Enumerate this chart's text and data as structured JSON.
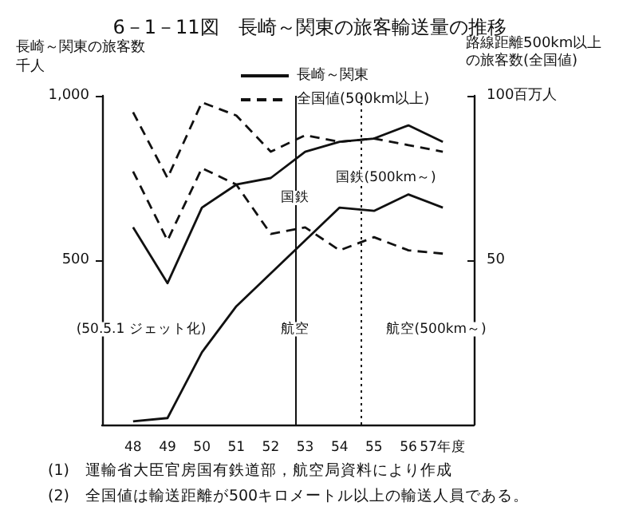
{
  "chart_data": {
    "type": "line",
    "title": "6－1－11図　長崎～関東の旅客輸送量の推移",
    "ylabel": "長崎～関東の旅客数千人",
    "y2label": "路線距離500km以上の旅客数(全国値)",
    "x": [
      48,
      49,
      50,
      51,
      52,
      53,
      54,
      55,
      56,
      57
    ],
    "xlim": [
      47.1,
      57.9
    ],
    "xticks": [
      48,
      49,
      50,
      51,
      52,
      53,
      54,
      55,
      56,
      {
        "value": 57,
        "label": "57年度"
      }
    ],
    "ylim": [
      0,
      1000
    ],
    "yticks": [
      500,
      {
        "value": 1000,
        "label": "1,000"
      }
    ],
    "y2lim": [
      0,
      100
    ],
    "y2ticks": [
      50,
      {
        "value": 100,
        "label": "100百万人"
      }
    ],
    "series": [
      {
        "name": "長崎～関東",
        "color": "#111111",
        "line_style": "solid",
        "values": [
          600,
          430,
          660,
          730,
          750,
          830,
          860,
          870,
          910,
          860
        ]
      },
      {
        "name": "全国値(500km以上)",
        "color": "#111111",
        "line_style": "dashed",
        "axis": "y2",
        "values": [
          95,
          75,
          98,
          94,
          83,
          88,
          86,
          87,
          85,
          83
        ]
      },
      {
        "color": "#111111",
        "line_style": "solid",
        "values": [
          10,
          20,
          220,
          360,
          460,
          560,
          660,
          650,
          700,
          660
        ]
      },
      {
        "color": "#111111",
        "line_style": "dashed",
        "axis": "y2",
        "values": [
          77,
          56,
          78,
          73,
          58,
          60,
          53,
          57,
          53,
          52
        ]
      }
    ],
    "ref_lines": [
      {
        "axis": "x",
        "value": 52.7,
        "color": "#111111",
        "line_style": "solid",
        "label": "航空"
      },
      {
        "axis": "x",
        "value": 54.6,
        "color": "#111111",
        "line_style": "dotted",
        "label": "航空(500km～)"
      }
    ],
    "annotations": [
      {
        "text": "国鉄",
        "x": 52.7,
        "y": 806
      },
      {
        "text": "国鉄(500km～)",
        "x": 54.6,
        "y": 866
      },
      {
        "text": "(50.5.1 ジェット化)",
        "x": 50.4,
        "y": 290
      },
      "(1)　運輸省大臣官房国有鉄道部，航空局資料により作成",
      "(2)　全国値は輸送距離が500キロメートル以上の輸送人員である。"
    ],
    "legend": "top"
  }
}
